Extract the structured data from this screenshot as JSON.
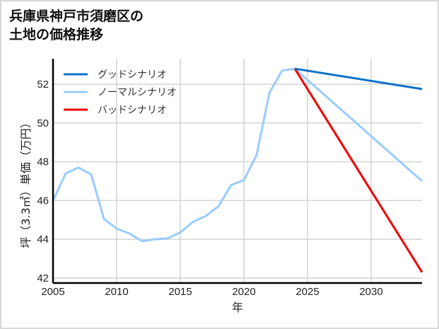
{
  "title": {
    "line1": "兵庫県神戸市須磨区の",
    "line2": "土地の価格推移"
  },
  "chart_data": {
    "type": "line",
    "title": "兵庫県神戸市須磨区の土地の価格推移",
    "xlabel": "年",
    "ylabel": "坪（3.3㎡）単価（万円）",
    "xlim": [
      2005,
      2034
    ],
    "ylim": [
      42,
      53.3
    ],
    "x_ticks": [
      2005,
      2010,
      2015,
      2020,
      2025,
      2030
    ],
    "y_ticks": [
      42,
      44,
      46,
      48,
      50,
      52
    ],
    "grid": true,
    "legend_position": "upper left",
    "history": {
      "x": [
        2005,
        2006,
        2007,
        2008,
        2009,
        2010,
        2011,
        2012,
        2013,
        2014,
        2015,
        2016,
        2017,
        2018,
        2019,
        2020,
        2021,
        2022,
        2023,
        2024
      ],
      "y": [
        46.0,
        47.4,
        47.7,
        47.35,
        45.05,
        44.55,
        44.3,
        43.9,
        44.0,
        44.05,
        44.35,
        44.9,
        45.2,
        45.7,
        46.8,
        47.05,
        48.35,
        51.55,
        52.7,
        52.8
      ]
    },
    "series": [
      {
        "name": "グッドシナリオ",
        "color": "#0a72c8",
        "x": [
          2024,
          2034
        ],
        "y": [
          52.8,
          51.75
        ]
      },
      {
        "name": "ノーマルシナリオ",
        "color": "#99ccff",
        "x": [
          2024,
          2034
        ],
        "y": [
          52.8,
          47.0
        ]
      },
      {
        "name": "バッドシナリオ",
        "color": "#ee0000",
        "x": [
          2024,
          2034
        ],
        "y": [
          52.8,
          42.3
        ]
      }
    ]
  }
}
